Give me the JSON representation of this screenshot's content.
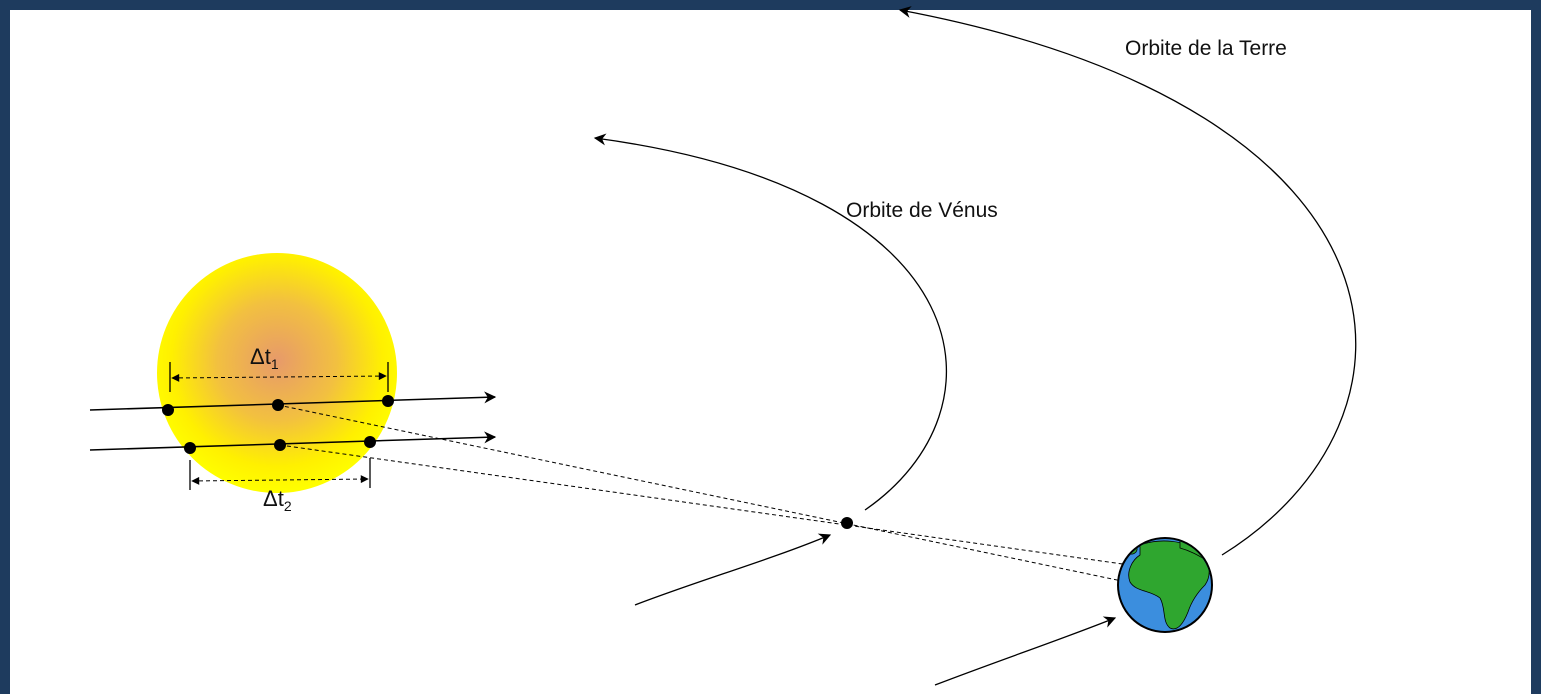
{
  "labels": {
    "earth_orbit": "Orbite de la Terre",
    "venus_orbit": "Orbite de Vénus",
    "delta_t1": {
      "symbol": "Δt",
      "subscript": "1"
    },
    "delta_t2": {
      "symbol": "Δt",
      "subscript": "2"
    }
  }
}
